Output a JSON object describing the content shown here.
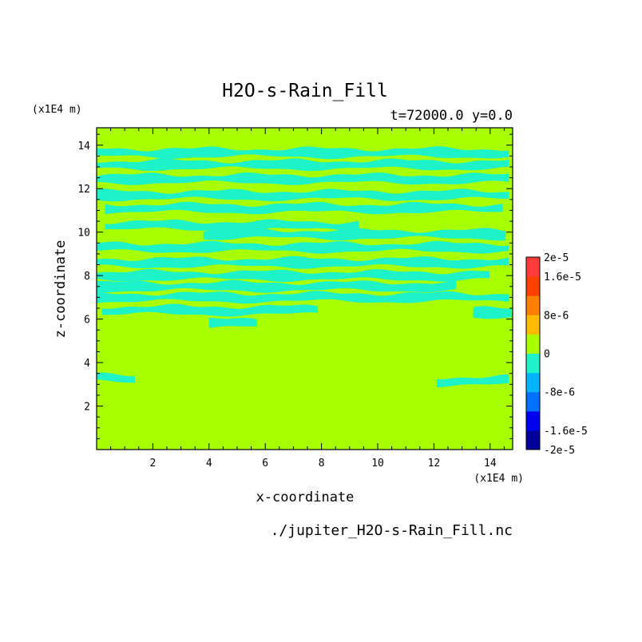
{
  "chart_data": {
    "type": "heatmap",
    "title": "H2O-s-Rain_Fill",
    "subtitle": "t=72000.0 y=0.0",
    "xlabel": "x-coordinate",
    "ylabel": "z-coordinate",
    "x_unit": "(x1E4 m)",
    "y_unit": "(x1E4 m)",
    "xlim": [
      0,
      14.8
    ],
    "ylim": [
      0,
      14.8
    ],
    "xticks": [
      2,
      4,
      6,
      8,
      10,
      12,
      14
    ],
    "yticks": [
      2,
      4,
      6,
      8,
      10,
      12,
      14
    ],
    "footer": "./jupiter_H2O-s-Rain_Fill.nc",
    "background_value": 0,
    "background_color": "#a8ff00",
    "band_color": "#1ef2c8",
    "colorbar": {
      "colors": [
        "#00009a",
        "#0000f0",
        "#0070ff",
        "#00b4ff",
        "#1ef2c8",
        "#a8ff00",
        "#ffbb00",
        "#ff8000",
        "#ff4000",
        "#ff3c3c"
      ],
      "labels": [
        "2e-5",
        "1.6e-5",
        "8e-6",
        "0",
        "-8e-6",
        "-1.6e-5",
        "-2e-5"
      ],
      "label_values": [
        2e-05,
        1.6e-05,
        8e-06,
        0,
        -8e-06,
        -1.6e-05,
        -2e-05
      ]
    },
    "bands": [
      {
        "z": 13.65,
        "x": [
          0.0,
          14.8
        ]
      },
      {
        "z": 13.1,
        "x": [
          0.0,
          14.8
        ]
      },
      {
        "z": 12.45,
        "x": [
          0.0,
          14.8
        ]
      },
      {
        "z": 11.7,
        "x": [
          0.0,
          14.8
        ]
      },
      {
        "z": 11.1,
        "x": [
          0.3,
          14.6
        ]
      },
      {
        "z": 10.3,
        "x": [
          0.3,
          9.5
        ]
      },
      {
        "z": 9.9,
        "x": [
          3.8,
          14.6
        ]
      },
      {
        "z": 9.3,
        "x": [
          0.0,
          14.8
        ]
      },
      {
        "z": 8.6,
        "x": [
          0.0,
          14.8
        ]
      },
      {
        "z": 8.0,
        "x": [
          0.0,
          14.0
        ]
      },
      {
        "z": 7.5,
        "x": [
          0.0,
          12.9
        ]
      },
      {
        "z": 7.0,
        "x": [
          0.0,
          14.8
        ]
      },
      {
        "z": 6.4,
        "x": [
          0.2,
          8.0
        ]
      },
      {
        "z": 6.3,
        "x": [
          13.4,
          14.8
        ]
      },
      {
        "z": 5.8,
        "x": [
          4.0,
          5.8
        ]
      },
      {
        "z": 3.3,
        "x": [
          0.0,
          1.4
        ]
      },
      {
        "z": 3.15,
        "x": [
          12.1,
          14.8
        ]
      }
    ]
  }
}
